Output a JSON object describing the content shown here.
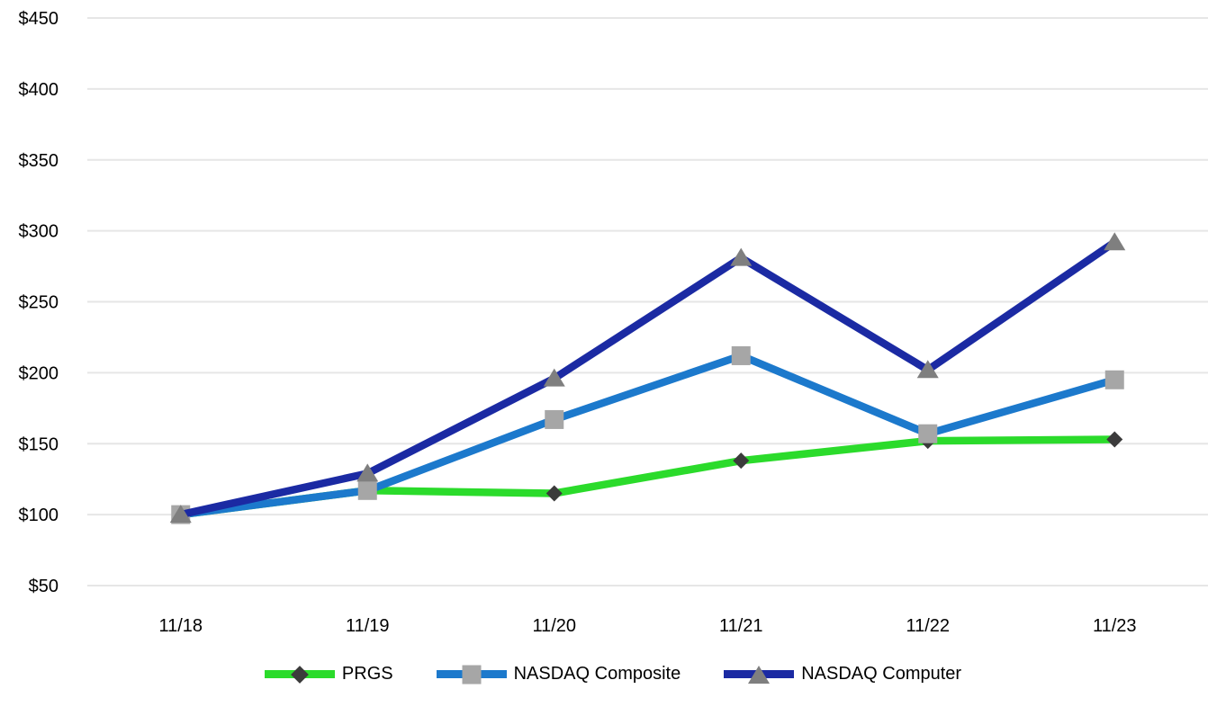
{
  "chart_data": {
    "type": "line",
    "title": "",
    "categories": [
      "11/18",
      "11/19",
      "11/20",
      "11/21",
      "11/22",
      "11/23"
    ],
    "series": [
      {
        "name": "PRGS",
        "values": [
          100,
          117,
          115,
          138,
          152,
          153
        ],
        "color": "#2BDB2B",
        "marker": "diamond",
        "marker_color": "#3B3B3B"
      },
      {
        "name": "NASDAQ Composite",
        "values": [
          100,
          117,
          167,
          212,
          157,
          195
        ],
        "color": "#1C79CC",
        "marker": "square",
        "marker_color": "#A6A6A6"
      },
      {
        "name": "NASDAQ Computer",
        "values": [
          100,
          129,
          196,
          281,
          202,
          292
        ],
        "color": "#1B2AA3",
        "marker": "triangle",
        "marker_color": "#7F7F7F"
      }
    ],
    "ylim": [
      50,
      450
    ],
    "ytick_step": 50,
    "ytick_labels": [
      "$50",
      "$100",
      "$150",
      "$200",
      "$250",
      "$300",
      "$350",
      "$400",
      "$450"
    ],
    "xlabel": "",
    "ylabel": "",
    "grid": true,
    "gridline_color": "#E6E6E6",
    "text_color": "#000000",
    "legend_position": "bottom"
  }
}
